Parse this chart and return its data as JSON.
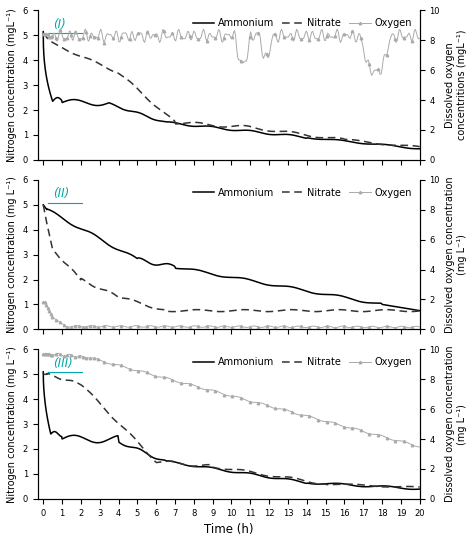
{
  "panels": [
    {
      "label": "(I)",
      "ylabel_left": "Nitrogen concentration (mgL⁻¹)",
      "ylabel_right": "Dissolved oxygen\nconcentritions (mgL⁻¹)",
      "ylim_left": [
        0,
        6
      ],
      "ylim_right": [
        0,
        10
      ],
      "yticks_left": [
        0,
        1,
        2,
        3,
        4,
        5,
        6
      ],
      "yticks_right": [
        0,
        2,
        4,
        6,
        8,
        10
      ]
    },
    {
      "label": "(II)",
      "ylabel_left": "Nitrogen concentration (mg L⁻¹)",
      "ylabel_right": "Dissolved oxygen concentration\n(mg L⁻¹)",
      "ylim_left": [
        0,
        6
      ],
      "ylim_right": [
        0,
        10
      ],
      "yticks_left": [
        0,
        1,
        2,
        3,
        4,
        5,
        6
      ],
      "yticks_right": [
        0,
        2,
        4,
        6,
        8,
        10
      ]
    },
    {
      "label": "(III)",
      "ylabel_left": "Nitrogen concentration (mg L⁻¹)",
      "ylabel_right": "Dissolved oxygen concentration\n(mg L⁻¹)",
      "ylim_left": [
        0,
        6
      ],
      "ylim_right": [
        0,
        10
      ],
      "yticks_left": [
        0,
        1,
        2,
        3,
        4,
        5,
        6
      ],
      "yticks_right": [
        0,
        2,
        4,
        6,
        8,
        10
      ]
    }
  ],
  "xlabel": "Time (h)",
  "xticks": [
    0,
    1,
    2,
    3,
    4,
    5,
    6,
    7,
    8,
    9,
    10,
    11,
    12,
    13,
    14,
    15,
    16,
    17,
    18,
    19,
    20
  ],
  "ammonium_color": "#000000",
  "nitrate_color": "#333333",
  "oxygen_color": "#aaaaaa",
  "label_color": "#00aaaa",
  "legend_fontsize": 7,
  "axis_fontsize": 7,
  "tick_fontsize": 6
}
